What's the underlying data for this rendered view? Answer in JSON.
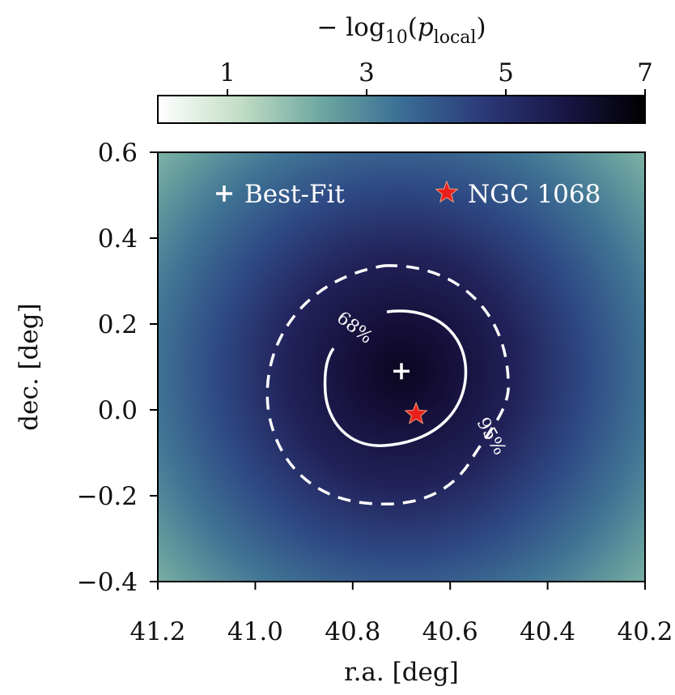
{
  "chart_data": {
    "type": "heatmap",
    "title": "",
    "xlabel": "r.a. [deg]",
    "ylabel": "dec. [deg]",
    "xlim": [
      41.2,
      40.2
    ],
    "ylim": [
      -0.4,
      0.6
    ],
    "x_ticks": [
      41.2,
      41.0,
      40.8,
      40.6,
      40.4,
      40.2
    ],
    "x_tick_labels": [
      "41.2",
      "41.0",
      "40.8",
      "40.6",
      "40.4",
      "40.2"
    ],
    "y_ticks": [
      -0.4,
      -0.2,
      0.0,
      0.2,
      0.4,
      0.6
    ],
    "y_tick_labels": [
      "−0.4",
      "−0.2",
      "0.0",
      "0.2",
      "0.4",
      "0.6"
    ],
    "colorbar": {
      "label_prefix": "− log",
      "label_sub": "10",
      "label_open": "(",
      "label_var": "p",
      "label_var_sub": "local",
      "label_close": ")",
      "range": [
        0.0,
        7.0
      ],
      "ticks": [
        1,
        3,
        5,
        7
      ],
      "tick_labels": [
        "1",
        "3",
        "5",
        "7"
      ],
      "colormap": [
        "#ffffff",
        "#c3dec6",
        "#6ea8a0",
        "#3a6e96",
        "#2b3a78",
        "#191646",
        "#000000"
      ]
    },
    "field": {
      "peak_ra": 40.7,
      "peak_dec": 0.09,
      "peak_value": 7.2
    },
    "points": [
      {
        "name": "Best-Fit",
        "ra": 40.7,
        "dec": 0.09,
        "marker": "plus",
        "color": "#ffffff"
      },
      {
        "name": "NGC 1068",
        "ra": 40.67,
        "dec": -0.01,
        "marker": "star",
        "color": "#e8201c"
      }
    ],
    "contours": [
      {
        "level_label": "68%",
        "style": "solid"
      },
      {
        "level_label": "95%",
        "style": "dashed"
      }
    ],
    "legend": {
      "placement": "top",
      "entries": [
        "Best-Fit",
        "NGC 1068"
      ]
    },
    "grid": false
  }
}
